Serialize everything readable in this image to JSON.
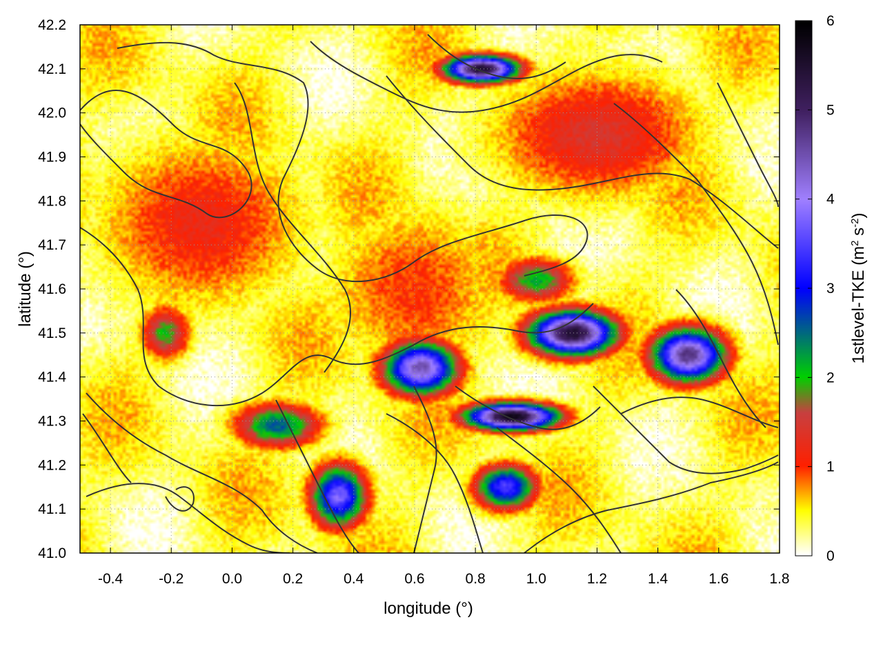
{
  "chart_data": {
    "type": "heatmap",
    "xlabel": "longitude (°)",
    "ylabel": "latitude (°)",
    "colorbar": {
      "label_main": "1stlevel-TKE (m",
      "label_sup1": "2",
      "label_mid": " s",
      "label_sup2": "-2",
      "label_end": ")",
      "range": [
        0,
        6
      ],
      "ticks": [
        0,
        1,
        2,
        3,
        4,
        5,
        6
      ],
      "colors": [
        {
          "v": 0.0,
          "c": "#ffffff"
        },
        {
          "v": 0.5,
          "c": "#ffff00"
        },
        {
          "v": 1.0,
          "c": "#ff2000"
        },
        {
          "v": 1.6,
          "c": "#c84040"
        },
        {
          "v": 2.0,
          "c": "#00d000"
        },
        {
          "v": 3.0,
          "c": "#0000ff"
        },
        {
          "v": 4.0,
          "c": "#a080ff"
        },
        {
          "v": 5.0,
          "c": "#402060"
        },
        {
          "v": 6.0,
          "c": "#000000"
        }
      ]
    },
    "xlim": [
      -0.5,
      1.8
    ],
    "ylim": [
      41.0,
      42.2
    ],
    "x_ticks": [
      "-0.4",
      "-0.2",
      "0.0",
      "0.2",
      "0.4",
      "0.6",
      "0.8",
      "1.0",
      "1.2",
      "1.4",
      "1.6",
      "1.8"
    ],
    "y_ticks": [
      "41.0",
      "41.1",
      "41.2",
      "41.3",
      "41.4",
      "41.5",
      "41.6",
      "41.7",
      "41.8",
      "41.9",
      "42.0",
      "42.1",
      "42.2"
    ],
    "grid": "dotted",
    "contour_lines": "topography (dark gray)",
    "field_hotspots": [
      {
        "lon": 0.62,
        "lat": 41.42,
        "tke": 4.5,
        "sx": 0.12,
        "sy": 0.06
      },
      {
        "lon": 0.35,
        "lat": 41.13,
        "tke": 3.8,
        "sx": 0.09,
        "sy": 0.07
      },
      {
        "lon": 0.15,
        "lat": 41.29,
        "tke": 2.6,
        "sx": 0.14,
        "sy": 0.05
      },
      {
        "lon": -0.22,
        "lat": 41.5,
        "tke": 2.0,
        "sx": 0.08,
        "sy": 0.06
      },
      {
        "lon": 1.12,
        "lat": 41.5,
        "tke": 5.5,
        "sx": 0.14,
        "sy": 0.05
      },
      {
        "lon": 1.5,
        "lat": 41.45,
        "tke": 4.8,
        "sx": 0.12,
        "sy": 0.06
      },
      {
        "lon": 0.92,
        "lat": 41.31,
        "tke": 5.8,
        "sx": 0.15,
        "sy": 0.03
      },
      {
        "lon": 0.82,
        "lat": 42.1,
        "tke": 5.5,
        "sx": 0.12,
        "sy": 0.03
      },
      {
        "lon": 0.9,
        "lat": 41.15,
        "tke": 3.5,
        "sx": 0.1,
        "sy": 0.05
      },
      {
        "lon": 1.0,
        "lat": 41.62,
        "tke": 2.2,
        "sx": 0.12,
        "sy": 0.05
      },
      {
        "lon": -0.1,
        "lat": 41.75,
        "tke": 1.2,
        "sx": 0.35,
        "sy": 0.2
      },
      {
        "lon": 1.2,
        "lat": 41.95,
        "tke": 1.4,
        "sx": 0.35,
        "sy": 0.15
      },
      {
        "lon": 0.6,
        "lat": 41.6,
        "tke": 1.0,
        "sx": 0.3,
        "sy": 0.2
      },
      {
        "lon": 1.55,
        "lat": 41.1,
        "tke": 0.3,
        "sx": 0.3,
        "sy": 0.1
      }
    ]
  }
}
